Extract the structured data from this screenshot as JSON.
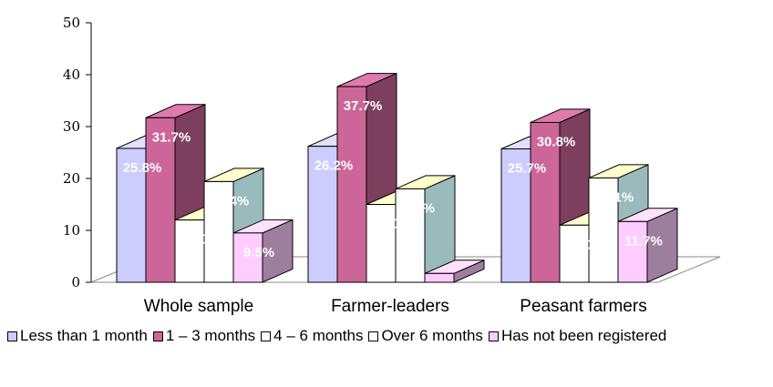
{
  "chart_data": {
    "type": "bar",
    "categories": [
      "Whole sample",
      "Farmer-leaders",
      "Peasant farmers"
    ],
    "series": [
      {
        "name": "Less than 1 month",
        "color": "#ccccff",
        "values": [
          25.8,
          26.2,
          25.7
        ],
        "labels": [
          "25.8%",
          "26.2%",
          "25.7%"
        ]
      },
      {
        "name": "1 – 3 months",
        "color": "#cc6699",
        "values": [
          31.7,
          37.7,
          30.8
        ],
        "labels": [
          "31.7%",
          "37.7%",
          "30.8%"
        ]
      },
      {
        "name": "4 – 6 months",
        "color": "#ffffff",
        "values": [
          12.0,
          15.0,
          11.0
        ],
        "labels": [
          "12.0%",
          "15.0%",
          "11.0%"
        ]
      },
      {
        "name": "Over 6 months",
        "color": "#ffffff",
        "values": [
          19.4,
          18.0,
          20.1
        ],
        "labels": [
          "19.4%",
          "18%",
          "20.1%"
        ]
      },
      {
        "name": "Has not been registered",
        "color": "#ffccff",
        "values": [
          9.5,
          1.7,
          11.7
        ],
        "labels": [
          "9.5%",
          "1.7%",
          "11.7%"
        ]
      }
    ],
    "ylim": [
      0,
      50
    ],
    "yticks": [
      "0",
      "10",
      "20",
      "30",
      "40",
      "50"
    ],
    "legend": "bottom",
    "grid": false
  }
}
